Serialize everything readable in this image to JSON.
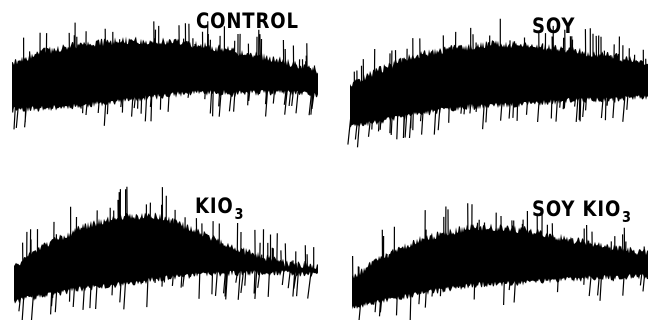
{
  "panels": [
    {
      "label": "CONTROL",
      "subscript": ""
    },
    {
      "label": "SOY",
      "subscript": ""
    },
    {
      "label": "KIO",
      "subscript": "3"
    },
    {
      "label": "SOY KIO",
      "subscript": "3"
    }
  ],
  "colors": {
    "trace": "#000000",
    "background": "#ffffff"
  }
}
